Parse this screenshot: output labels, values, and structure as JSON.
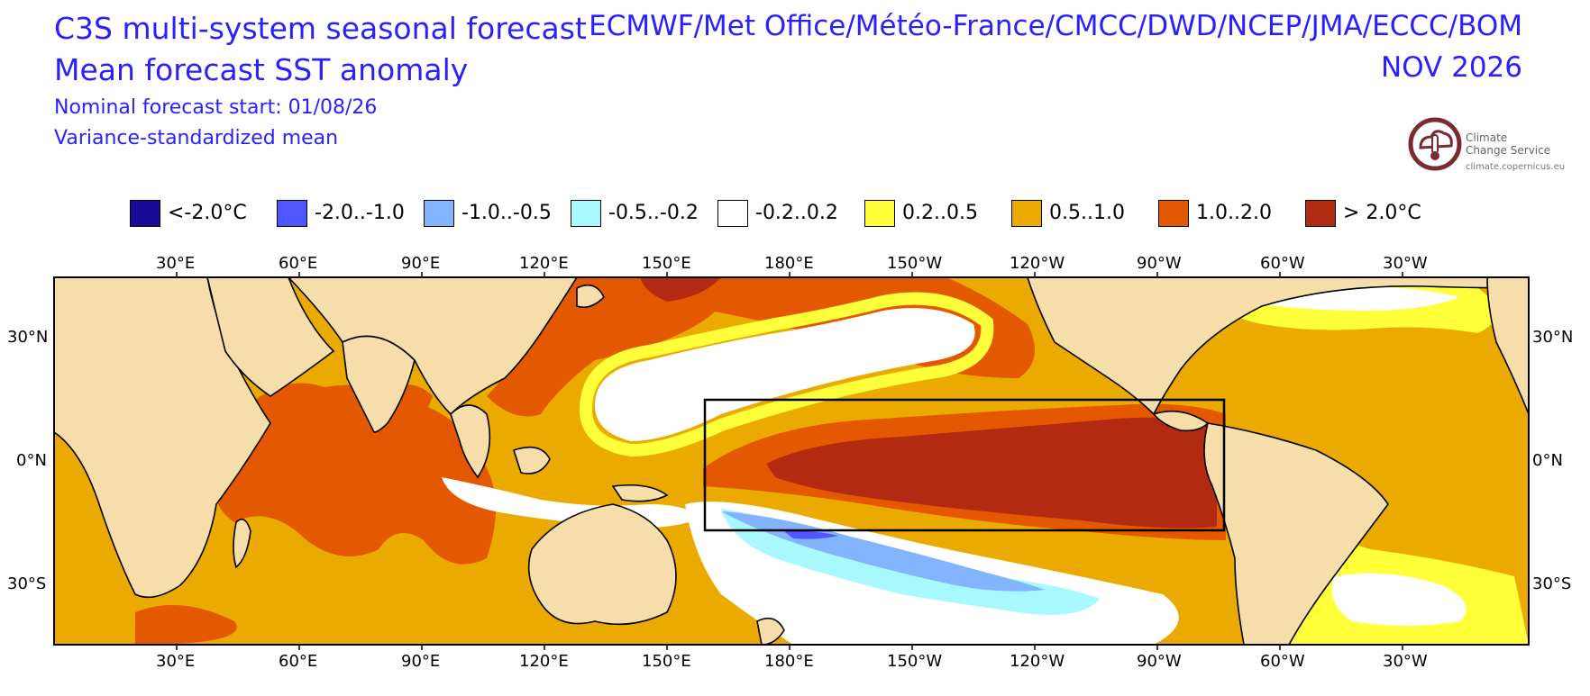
{
  "header": {
    "title": "C3S multi-system seasonal forecast",
    "subtitle": "Mean forecast SST anomaly",
    "forecast_start": "Nominal forecast start: 01/08/26",
    "method": "Variance-standardized mean",
    "centres": "ECMWF/Met Office/Météo-France/CMCC/DWD/NCEP/JMA/ECCC/BOM",
    "valid_month": "NOV 2026"
  },
  "logo": {
    "name_line1": "Climate",
    "name_line2": "Change Service",
    "url": "climate.copernicus.eu",
    "icon": "thermometer-cloud-icon"
  },
  "legend": [
    {
      "label": "<-2.0°C",
      "color": "#1a0a99"
    },
    {
      "label": "-2.0..-1.0",
      "color": "#4f55ff"
    },
    {
      "label": "-1.0..-0.5",
      "color": "#82b4ff"
    },
    {
      "label": "-0.5..-0.2",
      "color": "#a8f8ff"
    },
    {
      "label": "-0.2..0.2",
      "color": "#ffffff"
    },
    {
      "label": "0.2..0.5",
      "color": "#ffff3a"
    },
    {
      "label": "0.5..1.0",
      "color": "#ebaa00"
    },
    {
      "label": "1.0..2.0",
      "color": "#e45800"
    },
    {
      "label": "> 2.0°C",
      "color": "#b22a12"
    }
  ],
  "axes": {
    "lon_ticks": [
      "30°E",
      "60°E",
      "90°E",
      "120°E",
      "150°E",
      "180°E",
      "150°W",
      "120°W",
      "90°W",
      "60°W",
      "30°W"
    ],
    "lat_ticks": [
      "30°N",
      "0°N",
      "30°S"
    ]
  },
  "colors": {
    "land": "#f5deaa",
    "coast": "#000000",
    "text": "#2b1fff"
  }
}
